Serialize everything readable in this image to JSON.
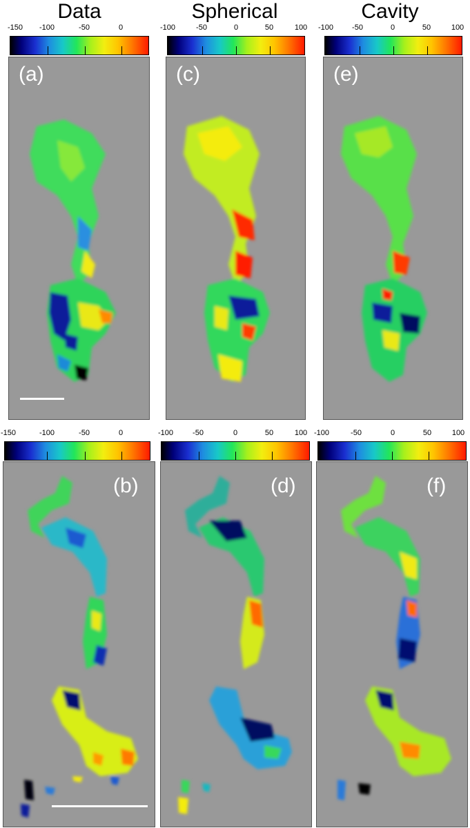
{
  "columns": [
    {
      "title": "Data"
    },
    {
      "title": "Spherical"
    },
    {
      "title": "Cavity"
    }
  ],
  "colorbars": {
    "data": [
      "-150",
      "-100",
      "-50",
      "0"
    ],
    "model": [
      "-100",
      "-50",
      "0",
      "50",
      "100"
    ]
  },
  "panel_labels": {
    "a": "(a)",
    "b": "(b)",
    "c": "(c)",
    "d": "(d)",
    "e": "(e)",
    "f": "(f)"
  },
  "colors": {
    "background": "#999999",
    "scale_bar": "#ffffff"
  }
}
